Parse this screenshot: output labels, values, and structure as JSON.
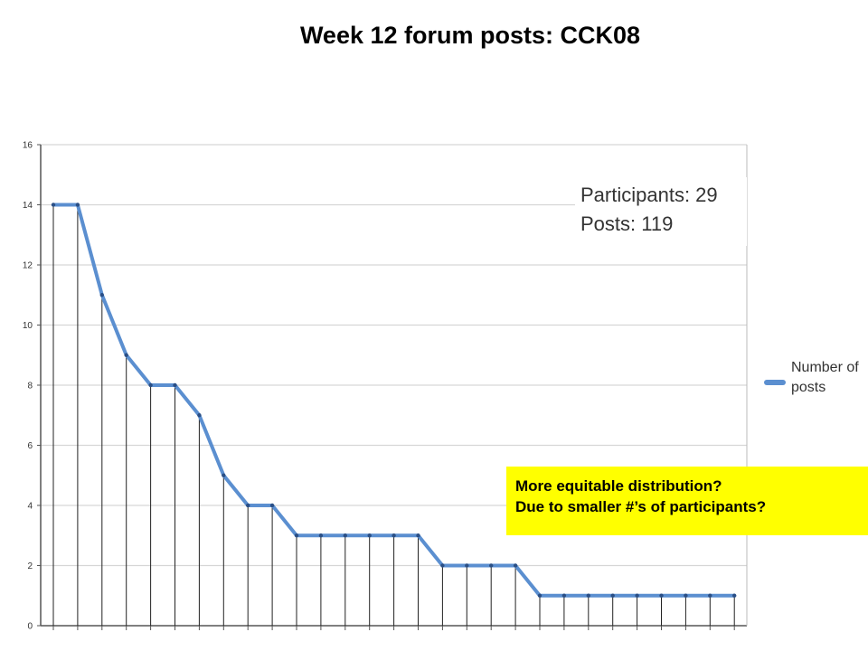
{
  "slide": {
    "title": "Week 12 forum posts: CCK08"
  },
  "stats": {
    "participants": "Participants: 29",
    "posts": "Posts: 119"
  },
  "callout": {
    "line1": "More equitable distribution?",
    "line2": "Due to smaller #’s of participants?",
    "background": "#ffff00"
  },
  "chart_data": {
    "type": "line",
    "title": "",
    "xlabel": "",
    "ylabel": "",
    "ylim": [
      0,
      16
    ],
    "yticks": [
      0,
      2,
      4,
      6,
      8,
      10,
      12,
      14,
      16
    ],
    "grid": true,
    "legend_position": "right",
    "drop_lines": true,
    "series": [
      {
        "name": "Number of posts",
        "color": "#5b8fd0",
        "values": [
          14,
          14,
          11,
          9,
          8,
          8,
          7,
          5,
          4,
          4,
          3,
          3,
          3,
          3,
          3,
          3,
          2,
          2,
          2,
          2,
          1,
          1,
          1,
          1,
          1,
          1,
          1,
          1,
          1
        ]
      }
    ]
  }
}
